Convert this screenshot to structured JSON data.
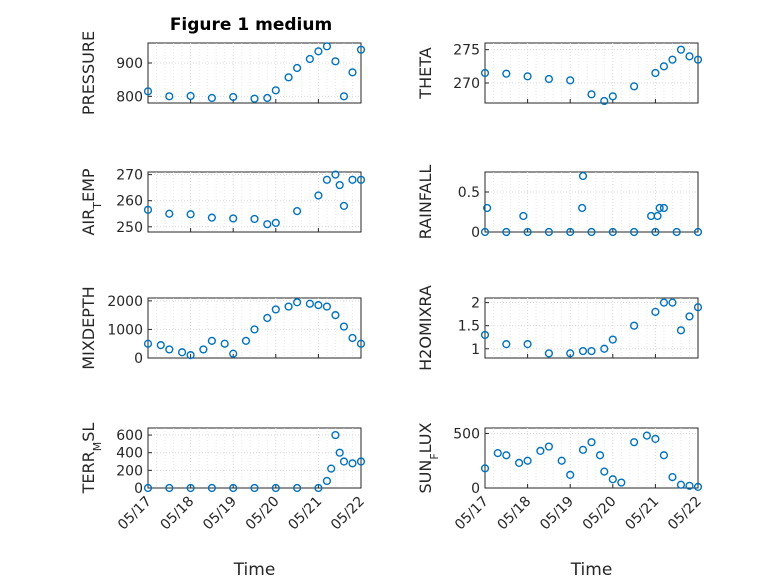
{
  "figure": {
    "title": "Figure 1 medium",
    "marker_color": "#0072BD",
    "axis_color": "#262626"
  },
  "chart_data": [
    {
      "id": "pressure",
      "type": "scatter",
      "ylabel": "PRESSURE",
      "yticks": [
        800,
        900
      ],
      "ylim": [
        780,
        960
      ],
      "xlim": [
        "05/17",
        "05/22"
      ],
      "xticks": [
        "05/17",
        "05/18",
        "05/19",
        "05/20",
        "05/21",
        "05/22"
      ],
      "xlabel": "",
      "grid": true,
      "minor_grid": true,
      "x": [
        0,
        0.5,
        1.0,
        1.5,
        2.0,
        2.5,
        2.8,
        3.0,
        3.3,
        3.5,
        3.8,
        4.0,
        4.2,
        4.4,
        4.6,
        4.8,
        5.0
      ],
      "y": [
        815,
        800,
        801,
        795,
        798,
        793,
        795,
        818,
        857,
        885,
        912,
        935,
        950,
        905,
        800,
        872,
        940
      ]
    },
    {
      "id": "theta",
      "type": "scatter",
      "ylabel": "THETA",
      "yticks": [
        270,
        275
      ],
      "ylim": [
        267,
        276
      ],
      "xlim": [
        "05/17",
        "05/22"
      ],
      "xticks": [
        "05/17",
        "05/18",
        "05/19",
        "05/20",
        "05/21",
        "05/22"
      ],
      "xlabel": "",
      "grid": true,
      "minor_grid": true,
      "x": [
        0,
        0.5,
        1.0,
        1.5,
        2.0,
        2.5,
        2.8,
        3.0,
        3.5,
        4.0,
        4.2,
        4.4,
        4.6,
        4.8,
        5.0
      ],
      "y": [
        271.5,
        271.4,
        271,
        270.6,
        270.4,
        268.3,
        267.3,
        268,
        269.5,
        271.5,
        272.5,
        273.5,
        275,
        274,
        273.5
      ]
    },
    {
      "id": "air_temp",
      "type": "scatter",
      "ylabel": "AIR",
      "ylabel_sub": "T",
      "ylabel_rest": "EMP",
      "yticks": [
        250,
        260,
        270
      ],
      "ylim": [
        248,
        271
      ],
      "xlim": [
        "05/17",
        "05/22"
      ],
      "xticks": [
        "05/17",
        "05/18",
        "05/19",
        "05/20",
        "05/21",
        "05/22"
      ],
      "xlabel": "",
      "grid": true,
      "minor_grid": true,
      "x": [
        0,
        0.5,
        1.0,
        1.5,
        2.0,
        2.5,
        2.8,
        3.0,
        3.5,
        4.0,
        4.2,
        4.4,
        4.5,
        4.6,
        4.8,
        5.0
      ],
      "y": [
        256.5,
        255,
        254.8,
        253.5,
        253.2,
        253,
        251,
        251.5,
        256,
        262,
        268,
        270,
        266,
        258,
        268,
        268
      ]
    },
    {
      "id": "rainfall",
      "type": "scatter",
      "ylabel": "RAINFALL",
      "yticks": [
        0,
        0.5
      ],
      "ylim": [
        0,
        0.75
      ],
      "xlim": [
        "05/17",
        "05/22"
      ],
      "xticks": [
        "05/17",
        "05/18",
        "05/19",
        "05/20",
        "05/21",
        "05/22"
      ],
      "xlabel": "",
      "grid": true,
      "minor_grid": true,
      "x": [
        0,
        0.5,
        1.0,
        1.5,
        2.0,
        2.5,
        3.0,
        3.5,
        4.0,
        4.5,
        5.0,
        0.05,
        0.9,
        2.28,
        2.3,
        3.9,
        4.05,
        4.1,
        4.2
      ],
      "y": [
        0,
        0,
        0,
        0,
        0,
        0,
        0,
        0,
        0,
        0,
        0,
        0.3,
        0.2,
        0.3,
        0.7,
        0.2,
        0.2,
        0.3,
        0.3
      ]
    },
    {
      "id": "mixdepth",
      "type": "scatter",
      "ylabel": "MIXDEPTH",
      "yticks": [
        0,
        1000,
        2000
      ],
      "ylim": [
        0,
        2100
      ],
      "xlim": [
        "05/17",
        "05/22"
      ],
      "xticks": [
        "05/17",
        "05/18",
        "05/19",
        "05/20",
        "05/21",
        "05/22"
      ],
      "xlabel": "",
      "grid": true,
      "minor_grid": true,
      "x": [
        0,
        0.3,
        0.5,
        0.8,
        1.0,
        1.3,
        1.5,
        1.8,
        2.0,
        2.3,
        2.5,
        2.8,
        3.0,
        3.3,
        3.5,
        3.8,
        4.0,
        4.2,
        4.4,
        4.6,
        4.8,
        5.0
      ],
      "y": [
        500,
        450,
        300,
        200,
        100,
        300,
        600,
        500,
        150,
        600,
        1000,
        1400,
        1700,
        1800,
        1950,
        1900,
        1850,
        1800,
        1500,
        1100,
        700,
        500
      ]
    },
    {
      "id": "h2omixra",
      "type": "scatter",
      "ylabel": "H2OMIXRA",
      "yticks": [
        1,
        1.5,
        2
      ],
      "ylim": [
        0.8,
        2.1
      ],
      "xlim": [
        "05/17",
        "05/22"
      ],
      "xticks": [
        "05/17",
        "05/18",
        "05/19",
        "05/20",
        "05/21",
        "05/22"
      ],
      "xlabel": "",
      "grid": true,
      "minor_grid": true,
      "x": [
        0,
        0.5,
        1.0,
        1.5,
        2.0,
        2.3,
        2.5,
        2.8,
        3.0,
        3.5,
        4.0,
        4.2,
        4.4,
        4.6,
        4.8,
        5.0
      ],
      "y": [
        1.3,
        1.1,
        1.1,
        0.9,
        0.9,
        0.95,
        0.95,
        1.0,
        1.2,
        1.5,
        1.8,
        2.0,
        2.0,
        1.4,
        1.7,
        1.9
      ]
    },
    {
      "id": "terr_msl",
      "type": "scatter",
      "ylabel": "TERR",
      "ylabel_sub": "M",
      "ylabel_rest": "SL",
      "yticks": [
        0,
        200,
        400,
        600
      ],
      "ylim": [
        0,
        680
      ],
      "xlim": [
        "05/17",
        "05/22"
      ],
      "xticks": [
        "05/17",
        "05/18",
        "05/19",
        "05/20",
        "05/21",
        "05/22"
      ],
      "xlabel": "Time",
      "grid": true,
      "minor_grid": true,
      "x": [
        0,
        0.5,
        1.0,
        1.5,
        2.0,
        2.5,
        3.0,
        3.5,
        4.0,
        4.2,
        4.3,
        4.4,
        4.5,
        4.6,
        4.8,
        5.0
      ],
      "y": [
        0,
        0,
        0,
        0,
        0,
        0,
        0,
        0,
        0,
        80,
        220,
        600,
        400,
        300,
        280,
        300
      ]
    },
    {
      "id": "sun_flux",
      "type": "scatter",
      "ylabel": "SUN",
      "ylabel_sub": "F",
      "ylabel_rest": "LUX",
      "yticks": [
        0,
        500
      ],
      "ylim": [
        0,
        550
      ],
      "xlim": [
        "05/17",
        "05/22"
      ],
      "xticks": [
        "05/17",
        "05/18",
        "05/19",
        "05/20",
        "05/21",
        "05/22"
      ],
      "xlabel": "Time",
      "grid": true,
      "minor_grid": true,
      "x": [
        0,
        0.3,
        0.5,
        0.8,
        1.0,
        1.3,
        1.5,
        1.8,
        2.0,
        2.3,
        2.5,
        2.7,
        2.8,
        3.0,
        3.2,
        3.5,
        3.8,
        4.0,
        4.2,
        4.4,
        4.6,
        4.8,
        5.0
      ],
      "y": [
        180,
        320,
        300,
        230,
        250,
        340,
        380,
        250,
        120,
        350,
        420,
        300,
        150,
        80,
        50,
        420,
        480,
        450,
        300,
        100,
        30,
        20,
        10
      ]
    }
  ]
}
